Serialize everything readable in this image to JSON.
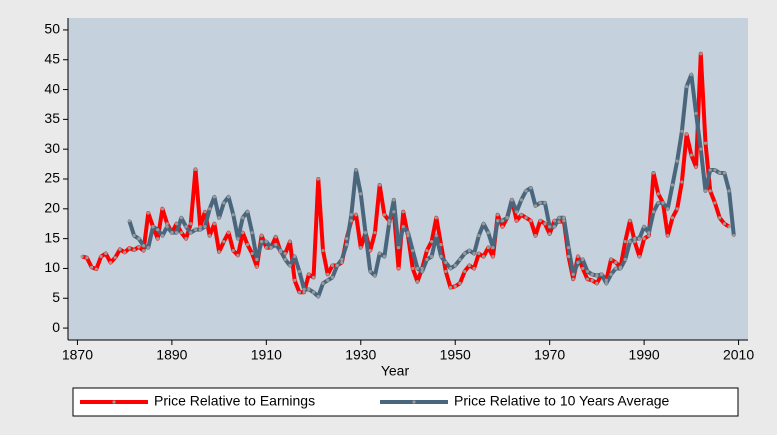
{
  "chart_data": {
    "type": "line",
    "xlabel": "Year",
    "x": [
      1871,
      1872,
      1873,
      1874,
      1875,
      1876,
      1877,
      1878,
      1879,
      1880,
      1881,
      1882,
      1883,
      1884,
      1885,
      1886,
      1887,
      1888,
      1889,
      1890,
      1891,
      1892,
      1893,
      1894,
      1895,
      1896,
      1897,
      1898,
      1899,
      1900,
      1901,
      1902,
      1903,
      1904,
      1905,
      1906,
      1907,
      1908,
      1909,
      1910,
      1911,
      1912,
      1913,
      1914,
      1915,
      1916,
      1917,
      1918,
      1919,
      1920,
      1921,
      1922,
      1923,
      1924,
      1925,
      1926,
      1927,
      1928,
      1929,
      1930,
      1931,
      1932,
      1933,
      1934,
      1935,
      1936,
      1937,
      1938,
      1939,
      1940,
      1941,
      1942,
      1943,
      1944,
      1945,
      1946,
      1947,
      1948,
      1949,
      1950,
      1951,
      1952,
      1953,
      1954,
      1955,
      1956,
      1957,
      1958,
      1959,
      1960,
      1961,
      1962,
      1963,
      1964,
      1965,
      1966,
      1967,
      1968,
      1969,
      1970,
      1971,
      1972,
      1973,
      1974,
      1975,
      1976,
      1977,
      1978,
      1979,
      1980,
      1981,
      1982,
      1983,
      1984,
      1985,
      1986,
      1987,
      1988,
      1989,
      1990,
      1991,
      1992,
      1993,
      1994,
      1995,
      1996,
      1997,
      1998,
      1999,
      2000,
      2001,
      2002,
      2003,
      2004,
      2005,
      2006,
      2007,
      2008,
      2009
    ],
    "series": [
      {
        "name": "Price Relative to Earnings",
        "color": "#ff0000",
        "values": [
          12.0,
          11.8,
          10.2,
          9.9,
          12.0,
          12.5,
          11.0,
          11.8,
          13.2,
          12.7,
          13.4,
          13.1,
          13.6,
          13.0,
          19.3,
          17.0,
          15.0,
          20.0,
          17.5,
          16.0,
          17.5,
          16.0,
          15.0,
          17.5,
          26.6,
          17.0,
          19.5,
          15.5,
          17.5,
          12.8,
          14.5,
          16.0,
          13.0,
          12.2,
          16.0,
          14.0,
          12.5,
          10.3,
          15.5,
          13.5,
          13.5,
          15.3,
          12.8,
          12.5,
          14.5,
          8.0,
          6.0,
          6.0,
          9.0,
          8.5,
          25.0,
          13.0,
          9.0,
          10.5,
          10.5,
          11.0,
          15.0,
          18.0,
          19.0,
          13.5,
          16.0,
          13.0,
          16.0,
          24.0,
          19.0,
          18.0,
          19.5,
          10.0,
          19.5,
          15.5,
          10.0,
          7.8,
          10.0,
          13.0,
          14.5,
          18.5,
          14.0,
          9.5,
          6.8,
          7.0,
          7.5,
          9.5,
          10.5,
          10.0,
          12.5,
          12.0,
          13.5,
          12.0,
          19.0,
          17.0,
          18.5,
          21.5,
          18.0,
          19.0,
          18.5,
          18.0,
          15.5,
          18.0,
          17.5,
          15.8,
          18.0,
          17.8,
          18.0,
          12.0,
          8.2,
          12.0,
          10.0,
          8.2,
          8.0,
          7.5,
          9.0,
          8.0,
          11.5,
          11.0,
          10.2,
          14.5,
          18.0,
          14.5,
          12.0,
          15.0,
          15.5,
          26.0,
          22.5,
          21.0,
          15.5,
          18.5,
          20.0,
          24.5,
          32.5,
          29.0,
          27.0,
          46.0,
          31.0,
          23.0,
          21.0,
          18.5,
          17.5,
          17.0,
          null
        ]
      },
      {
        "name": "Price Relative to 10 Years Average",
        "color": "#4a667c",
        "values": [
          null,
          null,
          null,
          null,
          null,
          null,
          null,
          null,
          null,
          null,
          18.0,
          15.5,
          15.0,
          13.8,
          13.5,
          17.0,
          16.5,
          15.5,
          17.0,
          16.0,
          16.0,
          18.5,
          17.0,
          16.0,
          16.5,
          16.5,
          17.0,
          20.0,
          22.0,
          18.5,
          21.0,
          22.0,
          19.0,
          15.0,
          18.5,
          19.5,
          16.0,
          11.5,
          14.5,
          14.5,
          13.5,
          14.0,
          13.0,
          11.5,
          10.5,
          12.0,
          9.5,
          6.5,
          6.5,
          6.0,
          5.3,
          7.5,
          8.0,
          8.5,
          10.5,
          11.5,
          14.0,
          19.0,
          26.5,
          22.5,
          16.0,
          9.5,
          8.8,
          12.5,
          12.0,
          17.5,
          21.5,
          13.5,
          17.0,
          16.0,
          13.0,
          10.0,
          9.5,
          11.5,
          12.0,
          15.5,
          12.0,
          11.0,
          10.0,
          10.5,
          11.5,
          12.5,
          13.0,
          12.5,
          15.5,
          17.5,
          16.0,
          13.5,
          18.0,
          18.0,
          18.5,
          21.5,
          19.5,
          21.5,
          23.0,
          23.5,
          20.5,
          21.0,
          21.0,
          17.0,
          17.0,
          18.5,
          18.5,
          13.5,
          9.0,
          11.0,
          11.5,
          9.5,
          9.0,
          8.8,
          9.0,
          7.5,
          9.0,
          10.0,
          10.0,
          11.5,
          14.5,
          15.0,
          15.0,
          17.0,
          16.0,
          19.5,
          21.0,
          21.0,
          20.0,
          24.0,
          28.0,
          33.0,
          40.5,
          42.5,
          36.0,
          30.0,
          23.0,
          26.5,
          26.5,
          26.0,
          26.0,
          23.0,
          15.5
        ]
      }
    ],
    "xlim": [
      1868,
      2012
    ],
    "ylim": [
      -2,
      52
    ],
    "xticks": [
      1870,
      1890,
      1910,
      1930,
      1950,
      1970,
      1990,
      2010
    ],
    "yticks": [
      0,
      5,
      10,
      15,
      20,
      25,
      30,
      35,
      40,
      45,
      50
    ],
    "marker_color": "#9a9a9a",
    "legend": "bottom"
  }
}
